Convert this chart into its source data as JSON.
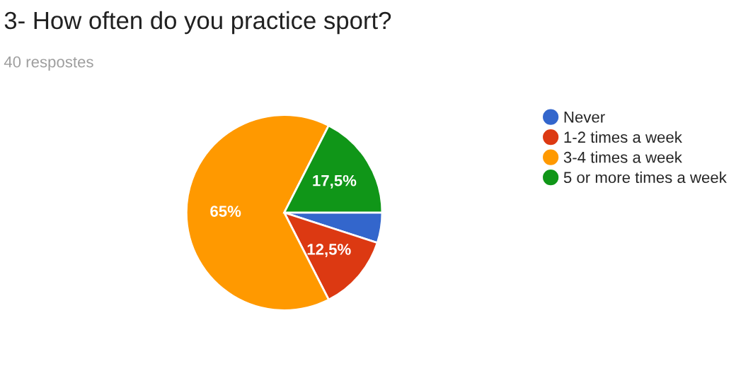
{
  "chart_data": {
    "type": "pie",
    "title": "3- How often do you practice sport?",
    "subtitle": "40 respostes",
    "categories": [
      "Never",
      "1-2 times a week",
      "3-4 times a week",
      "5 or more times a week"
    ],
    "values": [
      5,
      12.5,
      65,
      17.5
    ],
    "value_labels": [
      null,
      "12,5%",
      "65%",
      "17,5%"
    ],
    "colors": [
      "#3366cc",
      "#dc3912",
      "#ff9900",
      "#109618"
    ],
    "legend": "right"
  }
}
